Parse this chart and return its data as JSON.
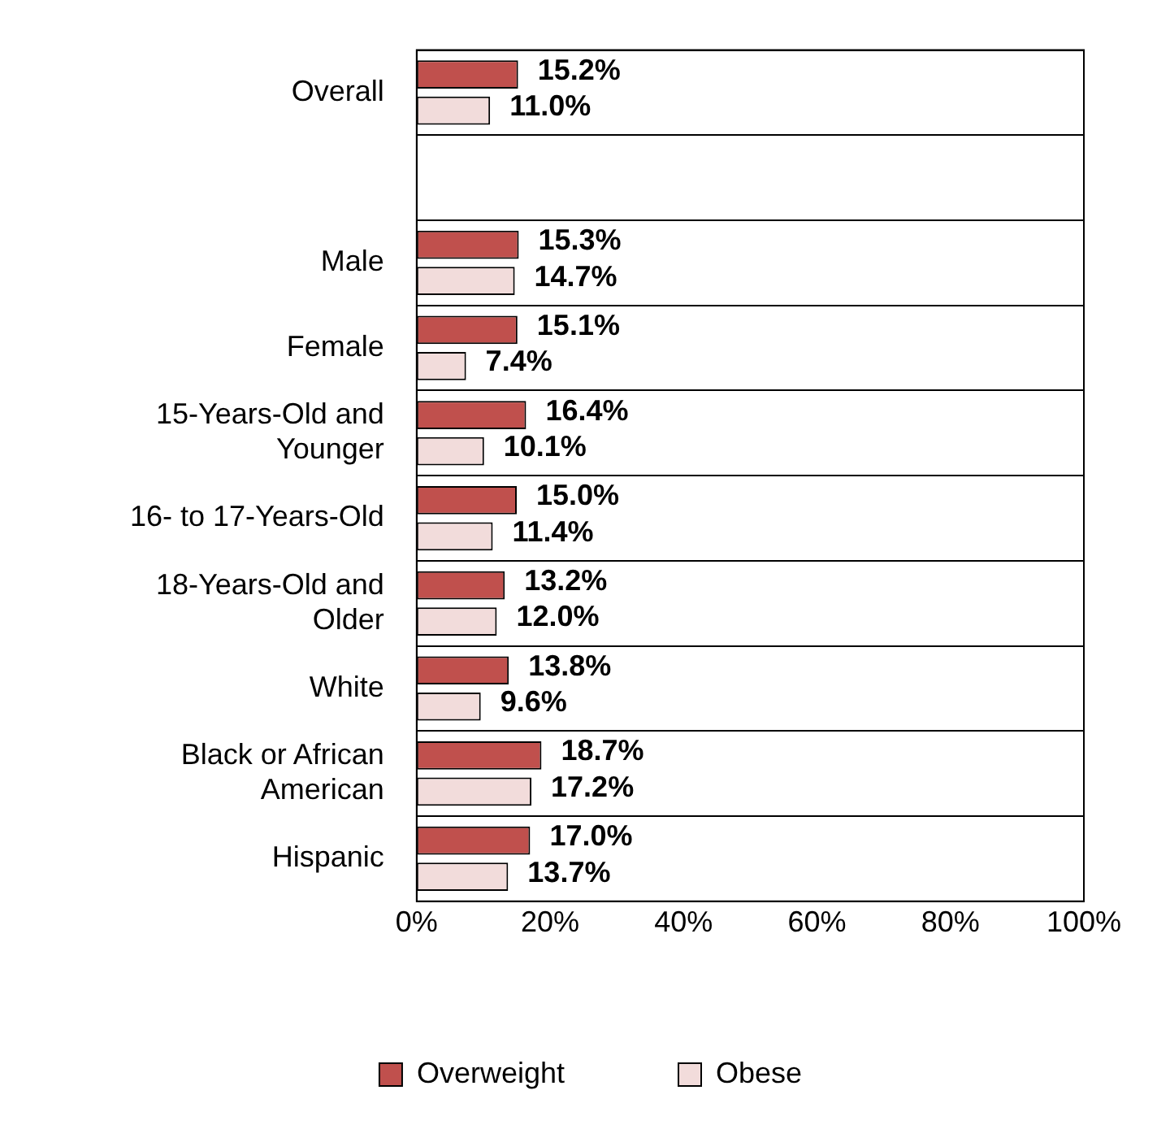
{
  "chart_data": {
    "type": "bar",
    "orientation": "horizontal",
    "categories": [
      "Overall",
      null,
      "Male",
      "Female",
      "15-Years-Old and Younger",
      "16- to 17-Years-Old",
      "18-Years-Old and Older",
      "White",
      "Black or African American",
      "Hispanic"
    ],
    "series": [
      {
        "name": "Overweight",
        "color": "#c0504d",
        "values": [
          15.2,
          null,
          15.3,
          15.1,
          16.4,
          15.0,
          13.2,
          13.8,
          18.7,
          17.0
        ],
        "value_labels": [
          "15.2%",
          null,
          "15.3%",
          "15.1%",
          "16.4%",
          "15.0%",
          "13.2%",
          "13.8%",
          "18.7%",
          "17.0%"
        ]
      },
      {
        "name": "Obese",
        "color": "#f2dcdb",
        "values": [
          11.0,
          null,
          14.7,
          7.4,
          10.1,
          11.4,
          12.0,
          9.6,
          17.2,
          13.7
        ],
        "value_labels": [
          "11.0%",
          null,
          "14.7%",
          "7.4%",
          "10.1%",
          "11.4%",
          "12.0%",
          "9.6%",
          "17.2%",
          "13.7%"
        ]
      }
    ],
    "xlim": [
      0,
      100
    ],
    "xticks": [
      {
        "value": 0,
        "label": "0%"
      },
      {
        "value": 20,
        "label": "20%"
      },
      {
        "value": 40,
        "label": "40%"
      },
      {
        "value": 60,
        "label": "60%"
      },
      {
        "value": 80,
        "label": "80%"
      },
      {
        "value": 100,
        "label": "100%"
      }
    ],
    "grid": "y",
    "legend": "bottom"
  }
}
